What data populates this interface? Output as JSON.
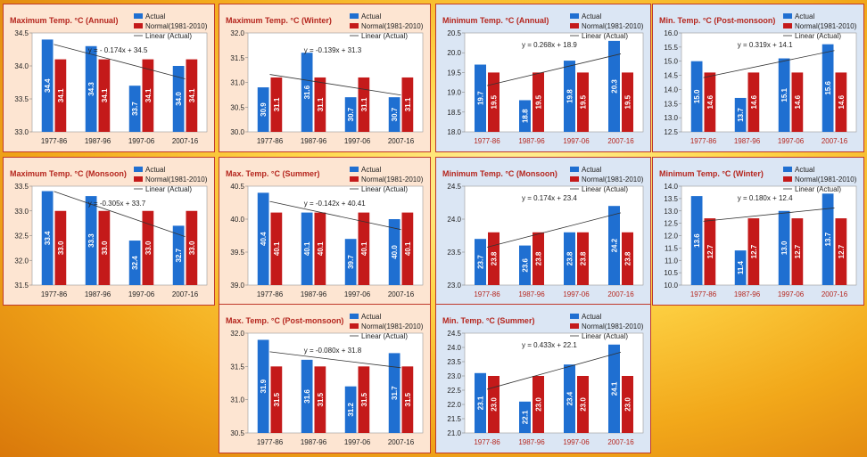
{
  "colors": {
    "actual": "#1f6fd1",
    "normal": "#c41a1a",
    "trend": "#333333",
    "xlabel_red": "#b5261e",
    "xlabel_dark": "#222222"
  },
  "chart_data": [
    {
      "id": "max-annual",
      "type": "bar",
      "title": "Maximum Temp. °C (Annual)",
      "categories": [
        "1977-86",
        "1987-96",
        "1997-06",
        "2007-16"
      ],
      "series": [
        {
          "name": "Actual",
          "values": [
            34.4,
            34.3,
            33.7,
            34.0
          ]
        },
        {
          "name": "Normal(1981-2010)",
          "values": [
            34.1,
            34.1,
            34.1,
            34.1
          ]
        }
      ],
      "trendline": {
        "name": "Linear (Actual)",
        "equation": "y = - 0.174x + 34.5",
        "slope": -0.174,
        "intercept": 34.5
      },
      "ylim": [
        33.0,
        34.5
      ],
      "yticks": [
        "33.0",
        "33.5",
        "34.0",
        "34.5"
      ],
      "theme": "max"
    },
    {
      "id": "max-winter",
      "type": "bar",
      "title": "Maximum Temp. °C (Winter)",
      "categories": [
        "1977-86",
        "1987-96",
        "1997-06",
        "2007-16"
      ],
      "series": [
        {
          "name": "Actual",
          "values": [
            30.9,
            31.6,
            30.7,
            30.7
          ]
        },
        {
          "name": "Normal(1981-2010)",
          "values": [
            31.1,
            31.1,
            31.1,
            31.1
          ]
        }
      ],
      "trendline": {
        "name": "Linear (Actual)",
        "equation": "y = -0.139x + 31.3",
        "slope": -0.139,
        "intercept": 31.3
      },
      "ylim": [
        30.0,
        32.0
      ],
      "yticks": [
        "30.0",
        "30.5",
        "31.0",
        "31.5",
        "32.0"
      ],
      "theme": "max"
    },
    {
      "id": "min-annual",
      "type": "bar",
      "title": "Minimum Temp. °C (Annual)",
      "categories": [
        "1977-86",
        "1987-96",
        "1997-06",
        "2007-16"
      ],
      "series": [
        {
          "name": "Actual",
          "values": [
            19.7,
            18.8,
            19.8,
            20.3
          ]
        },
        {
          "name": "Normal(1981-2010)",
          "values": [
            19.5,
            19.5,
            19.5,
            19.5
          ]
        }
      ],
      "trendline": {
        "name": "Linear (Actual)",
        "equation": "y = 0.268x + 18.9",
        "slope": 0.268,
        "intercept": 18.9
      },
      "ylim": [
        18.0,
        20.5
      ],
      "yticks": [
        "18.0",
        "18.5",
        "19.0",
        "19.5",
        "20.0",
        "20.5"
      ],
      "theme": "min"
    },
    {
      "id": "min-postmonsoon",
      "type": "bar",
      "title": "Min. Temp. °C (Post-monsoon)",
      "categories": [
        "1977-86",
        "1987-96",
        "1997-06",
        "2007-16"
      ],
      "series": [
        {
          "name": "Actual",
          "values": [
            15.0,
            13.7,
            15.1,
            15.6
          ]
        },
        {
          "name": "Normal(1981-2010)",
          "values": [
            14.6,
            14.6,
            14.6,
            14.6
          ]
        }
      ],
      "trendline": {
        "name": "Linear (Actual)",
        "equation": "y = 0.319x + 14.1",
        "slope": 0.319,
        "intercept": 14.1
      },
      "ylim": [
        12.5,
        16.0
      ],
      "yticks": [
        "12.5",
        "13.0",
        "13.5",
        "14.0",
        "14.5",
        "15.0",
        "15.5",
        "16.0"
      ],
      "theme": "min"
    },
    {
      "id": "max-monsoon",
      "type": "bar",
      "title": "Maximum Temp. °C (Monsoon)",
      "categories": [
        "1977-86",
        "1987-96",
        "1997-06",
        "2007-16"
      ],
      "series": [
        {
          "name": "Actual",
          "values": [
            33.4,
            33.3,
            32.4,
            32.7
          ]
        },
        {
          "name": "Normal(1981-2010)",
          "values": [
            33.0,
            33.0,
            33.0,
            33.0
          ]
        }
      ],
      "trendline": {
        "name": "Linear (Actual)",
        "equation": "y = -0.305x + 33.7",
        "slope": -0.305,
        "intercept": 33.7
      },
      "ylim": [
        31.5,
        33.5
      ],
      "yticks": [
        "31.5",
        "32.0",
        "32.5",
        "33.0",
        "33.5"
      ],
      "theme": "max"
    },
    {
      "id": "max-summer",
      "type": "bar",
      "title": "Max. Temp. °C (Summer)",
      "categories": [
        "1977-86",
        "1987-96",
        "1997-06",
        "2007-16"
      ],
      "series": [
        {
          "name": "Actual",
          "values": [
            40.4,
            40.1,
            39.7,
            40.0
          ]
        },
        {
          "name": "Normal(1981-2010)",
          "values": [
            40.1,
            40.1,
            40.1,
            40.1
          ]
        }
      ],
      "trendline": {
        "name": "Linear (Actual)",
        "equation": "y = -0.142x + 40.41",
        "slope": -0.142,
        "intercept": 40.41
      },
      "ylim": [
        39.0,
        40.5
      ],
      "yticks": [
        "39.0",
        "39.5",
        "40.0",
        "40.5"
      ],
      "theme": "max"
    },
    {
      "id": "min-monsoon",
      "type": "bar",
      "title": "Minimum Temp. °C (Monsoon)",
      "categories": [
        "1977-86",
        "1987-96",
        "1997-06",
        "2007-16"
      ],
      "series": [
        {
          "name": "Actual",
          "values": [
            23.7,
            23.6,
            23.8,
            24.2
          ]
        },
        {
          "name": "Normal(1981-2010)",
          "values": [
            23.8,
            23.8,
            23.8,
            23.8
          ]
        }
      ],
      "trendline": {
        "name": "Linear (Actual)",
        "equation": "y = 0.174x + 23.4",
        "slope": 0.174,
        "intercept": 23.4
      },
      "ylim": [
        23.0,
        24.5
      ],
      "yticks": [
        "23.0",
        "23.5",
        "24.0",
        "24.5"
      ],
      "theme": "min"
    },
    {
      "id": "min-winter",
      "type": "bar",
      "title": "Minimum Temp. °C (Winter)",
      "categories": [
        "1977-86",
        "1987-96",
        "1997-06",
        "2007-16"
      ],
      "series": [
        {
          "name": "Actual",
          "values": [
            13.6,
            11.4,
            13.0,
            13.7
          ]
        },
        {
          "name": "Normal(1981-2010)",
          "values": [
            12.7,
            12.7,
            12.7,
            12.7
          ]
        }
      ],
      "trendline": {
        "name": "Linear (Actual)",
        "equation": "y = 0.180x + 12.4",
        "slope": 0.18,
        "intercept": 12.4
      },
      "ylim": [
        10.0,
        14.0
      ],
      "yticks": [
        "10.0",
        "10.5",
        "11.0",
        "11.5",
        "12.0",
        "12.5",
        "13.0",
        "13.5",
        "14.0"
      ],
      "theme": "min"
    },
    {
      "id": "max-postmonsoon",
      "type": "bar",
      "title": "Max. Temp. °C (Post-monsoon)",
      "categories": [
        "1977-86",
        "1987-96",
        "1997-06",
        "2007-16"
      ],
      "series": [
        {
          "name": "Actual",
          "values": [
            31.9,
            31.6,
            31.2,
            31.7
          ]
        },
        {
          "name": "Normal(1981-2010)",
          "values": [
            31.5,
            31.5,
            31.5,
            31.5
          ]
        }
      ],
      "trendline": {
        "name": "Linear (Actual)",
        "equation": "y = -0.080x + 31.8",
        "slope": -0.08,
        "intercept": 31.8
      },
      "ylim": [
        30.5,
        32.0
      ],
      "yticks": [
        "30.5",
        "31.0",
        "31.5",
        "32.0"
      ],
      "theme": "max"
    },
    {
      "id": "min-summer",
      "type": "bar",
      "title": "Min. Temp. °C (Summer)",
      "categories": [
        "1977-86",
        "1987-96",
        "1997-06",
        "2007-16"
      ],
      "series": [
        {
          "name": "Actual",
          "values": [
            23.1,
            22.1,
            23.4,
            24.1
          ]
        },
        {
          "name": "Normal(1981-2010)",
          "values": [
            23.0,
            23.0,
            23.0,
            23.0
          ]
        }
      ],
      "trendline": {
        "name": "Linear (Actual)",
        "equation": "y = 0.433x + 22.1",
        "slope": 0.433,
        "intercept": 22.1
      },
      "ylim": [
        21.0,
        24.5
      ],
      "yticks": [
        "21.0",
        "21.5",
        "22.0",
        "22.5",
        "23.0",
        "23.5",
        "24.0",
        "24.5"
      ],
      "theme": "min"
    }
  ]
}
